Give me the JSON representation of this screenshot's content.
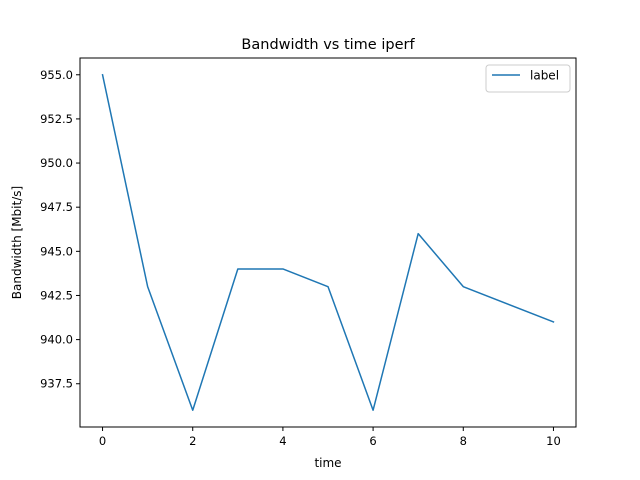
{
  "chart_data": {
    "type": "line",
    "title": "Bandwidth vs time iperf",
    "xlabel": "time",
    "ylabel": "Bandwidth [Mbit/s]",
    "xlim": [
      -0.5,
      10.5
    ],
    "ylim": [
      935.05,
      955.95
    ],
    "xticks": [
      0,
      2,
      4,
      6,
      8,
      10
    ],
    "xtick_labels": [
      "0",
      "2",
      "4",
      "6",
      "8",
      "10"
    ],
    "yticks": [
      937.5,
      940.0,
      942.5,
      945.0,
      947.5,
      950.0,
      952.5,
      955.0
    ],
    "ytick_labels": [
      "937.5",
      "940.0",
      "942.5",
      "945.0",
      "947.5",
      "950.0",
      "952.5",
      "955.0"
    ],
    "grid": false,
    "legend_position": "top-right",
    "series": [
      {
        "name": "label",
        "color": "#1f77b4",
        "x": [
          0,
          1,
          2,
          3,
          4,
          5,
          6,
          7,
          8,
          10
        ],
        "y": [
          955,
          943,
          936,
          944,
          944,
          943,
          936,
          946,
          943,
          941
        ]
      }
    ]
  }
}
